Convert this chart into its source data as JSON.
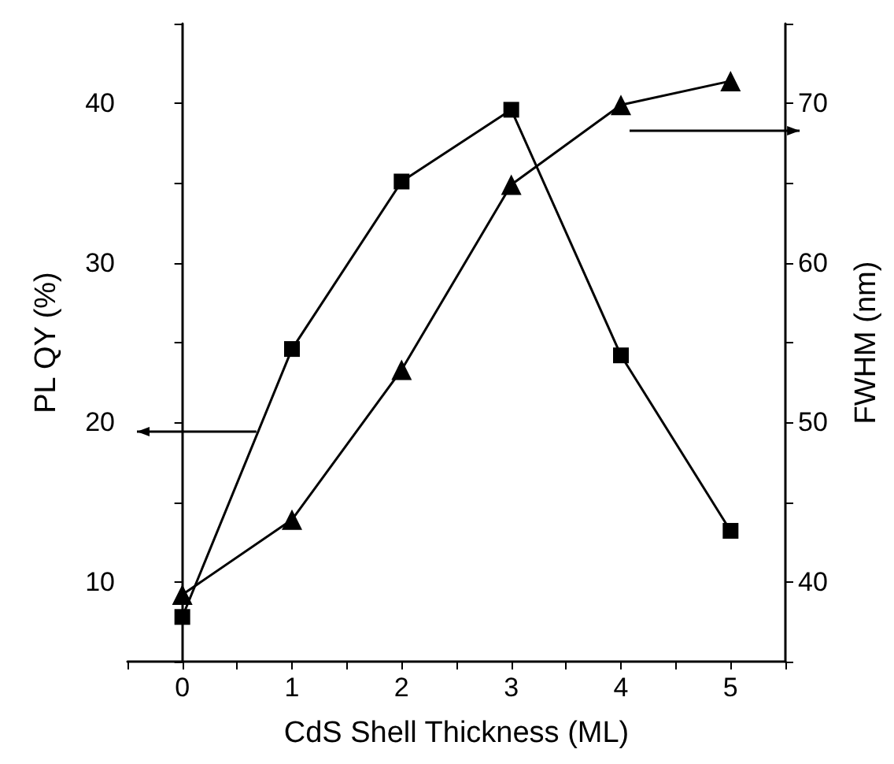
{
  "chart_data": {
    "type": "line",
    "xlabel": "CdS Shell Thickness (ML)",
    "ylabel": "PL QY (%)",
    "y2label": "FWHM (nm)",
    "x": [
      0,
      1,
      2,
      3,
      4,
      5
    ],
    "series": [
      {
        "color": "#000000",
        "marker": "square",
        "values": [
          7.8,
          24.6,
          35.1,
          39.6,
          24.2,
          13.2
        ]
      },
      {
        "color": "#000000",
        "marker": "triangle",
        "axis": "y2",
        "values": [
          39.2,
          43.9,
          53.3,
          64.9,
          69.9,
          71.4
        ]
      }
    ],
    "xlim": [
      -0.5,
      5.5
    ],
    "xticks": [
      {
        "value": -0.5,
        "label": null
      },
      0,
      {
        "value": 0.5,
        "label": null
      },
      1,
      {
        "value": 1.5,
        "label": null
      },
      2,
      {
        "value": 2.5,
        "label": null
      },
      3,
      {
        "value": 3.5,
        "label": null
      },
      4,
      {
        "value": 4.5,
        "label": null
      },
      5,
      {
        "value": 5.5,
        "label": null
      }
    ],
    "ylim": [
      5,
      45
    ],
    "yticks": [
      {
        "value": 5,
        "label": null
      },
      10,
      {
        "value": 15,
        "label": null
      },
      20,
      {
        "value": 25,
        "label": null
      },
      30,
      {
        "value": 35,
        "label": null
      },
      40,
      {
        "value": 45,
        "label": null
      }
    ],
    "y2lim": [
      35,
      75
    ],
    "y2ticks": [
      {
        "value": 35,
        "label": null
      },
      40,
      {
        "value": 45,
        "label": null
      },
      50,
      {
        "value": 55,
        "label": null
      },
      60,
      {
        "value": 65,
        "label": null
      },
      70,
      {
        "value": 75,
        "label": null
      }
    ],
    "grid": false,
    "line_style": "solid"
  }
}
